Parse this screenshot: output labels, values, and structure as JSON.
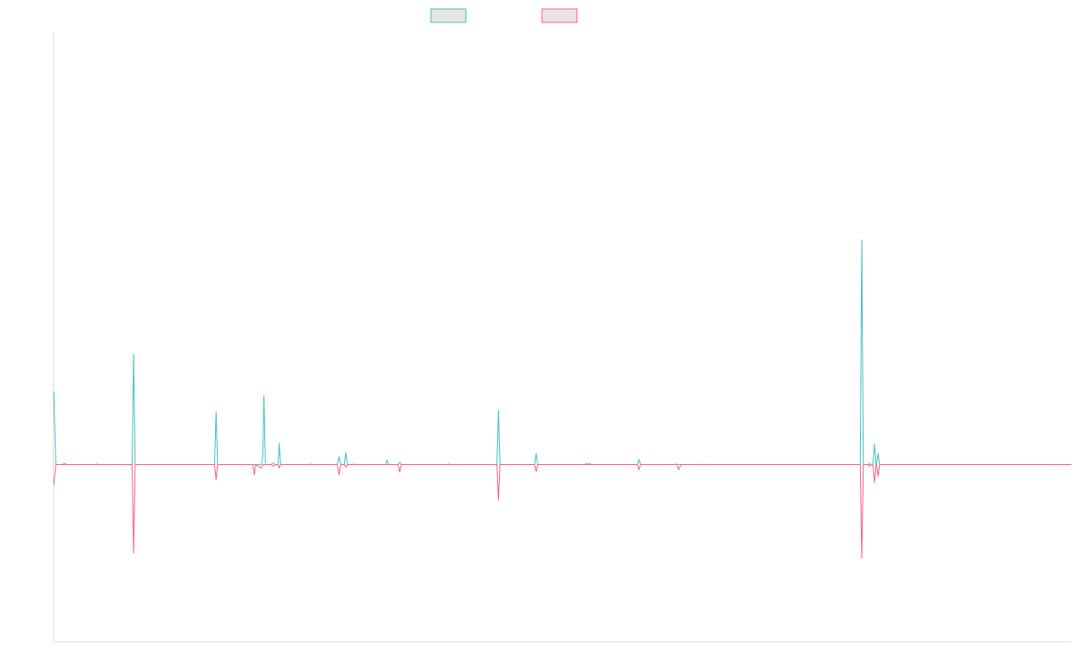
{
  "chart_data": {
    "type": "line",
    "title": "",
    "xlabel": "",
    "ylabel": "",
    "xlim": [
      0,
      1
    ],
    "ylim": [
      -1.0,
      1.0
    ],
    "grid": false,
    "legend_placement": "top-center",
    "series": [
      {
        "color": "#4bc0c0",
        "fill": "#e6e6e6",
        "points": [
          [
            0.0,
            0.43
          ],
          [
            0.002,
            0.0
          ],
          [
            0.008,
            0.0
          ],
          [
            0.0105,
            0.006
          ],
          [
            0.013,
            0.0
          ],
          [
            0.041,
            0.0
          ],
          [
            0.0425,
            0.003
          ],
          [
            0.044,
            0.0
          ],
          [
            0.077,
            0.0
          ],
          [
            0.0785,
            0.65
          ],
          [
            0.08,
            0.0
          ],
          [
            0.158,
            0.0
          ],
          [
            0.1595,
            0.31
          ],
          [
            0.161,
            0.0
          ],
          [
            0.199,
            0.0
          ],
          [
            0.204,
            0.0
          ],
          [
            0.2055,
            0.05
          ],
          [
            0.2065,
            0.405
          ],
          [
            0.208,
            0.0
          ],
          [
            0.2135,
            0.0
          ],
          [
            0.2155,
            0.01
          ],
          [
            0.2175,
            0.0
          ],
          [
            0.2205,
            0.0
          ],
          [
            0.2215,
            0.125
          ],
          [
            0.223,
            0.0
          ],
          [
            0.251,
            0.0
          ],
          [
            0.2525,
            0.003
          ],
          [
            0.254,
            0.0
          ],
          [
            0.2785,
            0.0
          ],
          [
            0.2805,
            0.045
          ],
          [
            0.282,
            0.0
          ],
          [
            0.2855,
            0.0
          ],
          [
            0.287,
            0.07
          ],
          [
            0.2885,
            0.0
          ],
          [
            0.2945,
            0.0
          ],
          [
            0.2955,
            0.003
          ],
          [
            0.2975,
            0.0
          ],
          [
            0.326,
            0.0
          ],
          [
            0.3275,
            0.025
          ],
          [
            0.329,
            0.0
          ],
          [
            0.3385,
            0.0
          ],
          [
            0.34,
            0.012
          ],
          [
            0.3415,
            0.0
          ],
          [
            0.387,
            0.0
          ],
          [
            0.3885,
            0.003
          ],
          [
            0.39,
            0.0
          ],
          [
            0.4355,
            0.0
          ],
          [
            0.437,
            0.32
          ],
          [
            0.4385,
            0.0
          ],
          [
            0.4725,
            0.0
          ],
          [
            0.474,
            0.065
          ],
          [
            0.4755,
            0.0
          ],
          [
            0.5215,
            0.0
          ],
          [
            0.523,
            0.006
          ],
          [
            0.5245,
            0.0
          ],
          [
            0.526,
            0.008
          ],
          [
            0.5275,
            0.0
          ],
          [
            0.5735,
            0.0
          ],
          [
            0.575,
            0.03
          ],
          [
            0.5765,
            0.0
          ],
          [
            0.6105,
            0.0
          ],
          [
            0.612,
            0.003
          ],
          [
            0.6135,
            0.0
          ],
          [
            0.6375,
            0.0
          ],
          [
            0.639,
            0.002
          ],
          [
            0.6405,
            0.0
          ],
          [
            0.7925,
            0.0
          ],
          [
            0.794,
            1.32
          ],
          [
            0.7955,
            0.0
          ],
          [
            0.8005,
            0.0
          ],
          [
            0.8015,
            0.006
          ],
          [
            0.803,
            0.0
          ],
          [
            0.805,
            0.0
          ],
          [
            0.8065,
            0.12
          ],
          [
            0.808,
            0.0
          ],
          [
            0.8085,
            0.0
          ],
          [
            0.81,
            0.065
          ],
          [
            0.8115,
            0.0
          ],
          [
            1.0,
            0.0
          ]
        ]
      },
      {
        "color": "#ff6384",
        "fill": "#e6e6e6",
        "points": [
          [
            0.0,
            -0.12
          ],
          [
            0.002,
            0.0
          ],
          [
            0.077,
            0.0
          ],
          [
            0.0785,
            -0.52
          ],
          [
            0.08,
            0.0
          ],
          [
            0.158,
            0.0
          ],
          [
            0.1595,
            -0.09
          ],
          [
            0.161,
            0.0
          ],
          [
            0.1955,
            0.0
          ],
          [
            0.197,
            -0.06
          ],
          [
            0.1985,
            0.0
          ],
          [
            0.204,
            -0.02
          ],
          [
            0.2055,
            0.0
          ],
          [
            0.2135,
            0.0
          ],
          [
            0.2155,
            -0.01
          ],
          [
            0.2175,
            0.0
          ],
          [
            0.2205,
            0.0
          ],
          [
            0.2215,
            -0.02
          ],
          [
            0.223,
            0.0
          ],
          [
            0.2785,
            0.0
          ],
          [
            0.2805,
            -0.06
          ],
          [
            0.282,
            0.0
          ],
          [
            0.2855,
            0.0
          ],
          [
            0.287,
            -0.015
          ],
          [
            0.2885,
            0.0
          ],
          [
            0.3385,
            0.0
          ],
          [
            0.34,
            -0.045
          ],
          [
            0.3415,
            0.0
          ],
          [
            0.4355,
            0.0
          ],
          [
            0.437,
            -0.21
          ],
          [
            0.4385,
            0.0
          ],
          [
            0.4725,
            0.0
          ],
          [
            0.474,
            -0.04
          ],
          [
            0.4755,
            0.0
          ],
          [
            0.5735,
            0.0
          ],
          [
            0.575,
            -0.03
          ],
          [
            0.5765,
            0.0
          ],
          [
            0.6125,
            0.0
          ],
          [
            0.614,
            -0.03
          ],
          [
            0.6155,
            -0.01
          ],
          [
            0.617,
            0.0
          ],
          [
            0.7925,
            0.0
          ],
          [
            0.794,
            -0.55
          ],
          [
            0.7955,
            0.0
          ],
          [
            0.8005,
            0.0
          ],
          [
            0.8015,
            -0.01
          ],
          [
            0.803,
            0.0
          ],
          [
            0.805,
            0.0
          ],
          [
            0.8065,
            -0.105
          ],
          [
            0.808,
            0.0
          ],
          [
            0.8085,
            0.0
          ],
          [
            0.81,
            -0.07
          ],
          [
            0.8115,
            0.0
          ],
          [
            1.0,
            0.0
          ]
        ]
      }
    ]
  }
}
